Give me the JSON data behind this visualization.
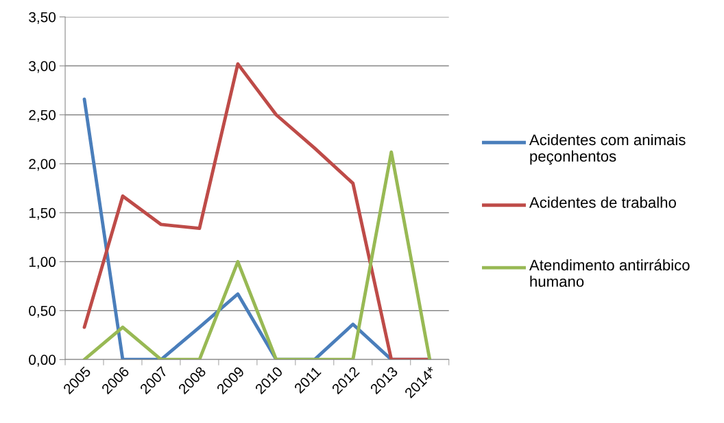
{
  "chart_data": {
    "type": "line",
    "categories": [
      "2005",
      "2006",
      "2007",
      "2008",
      "2009",
      "2010",
      "2011",
      "2012",
      "2013",
      "2014*"
    ],
    "ylim": [
      0,
      3.5
    ],
    "yticks": [
      {
        "value": 0,
        "label": "0,00"
      },
      {
        "value": 0.5,
        "label": "0,50"
      },
      {
        "value": 1,
        "label": "1,00"
      },
      {
        "value": 1.5,
        "label": "1,50"
      },
      {
        "value": 2,
        "label": "2,00"
      },
      {
        "value": 2.5,
        "label": "2,50"
      },
      {
        "value": 3,
        "label": "3,00"
      },
      {
        "value": 3.5,
        "label": "3,50"
      }
    ],
    "grid": "y",
    "legend": "right",
    "marker": "none",
    "line_style": "solid",
    "series": [
      {
        "name": "Acidentes com animais peçonhentos",
        "color": "#4a7ebb",
        "values": [
          2.66,
          0,
          0,
          0.33,
          0.67,
          0,
          0,
          0.36,
          0,
          0
        ]
      },
      {
        "name": "Acidentes de trabalho",
        "color": "#be4b48",
        "values": [
          0.33,
          1.67,
          1.38,
          1.34,
          3.02,
          2.5,
          2.16,
          1.8,
          0,
          0
        ]
      },
      {
        "name": "Atendimento antirrábico humano",
        "color": "#98b954",
        "values": [
          0,
          0.33,
          0,
          0,
          1.0,
          0,
          0,
          0,
          2.12,
          0
        ]
      }
    ]
  }
}
